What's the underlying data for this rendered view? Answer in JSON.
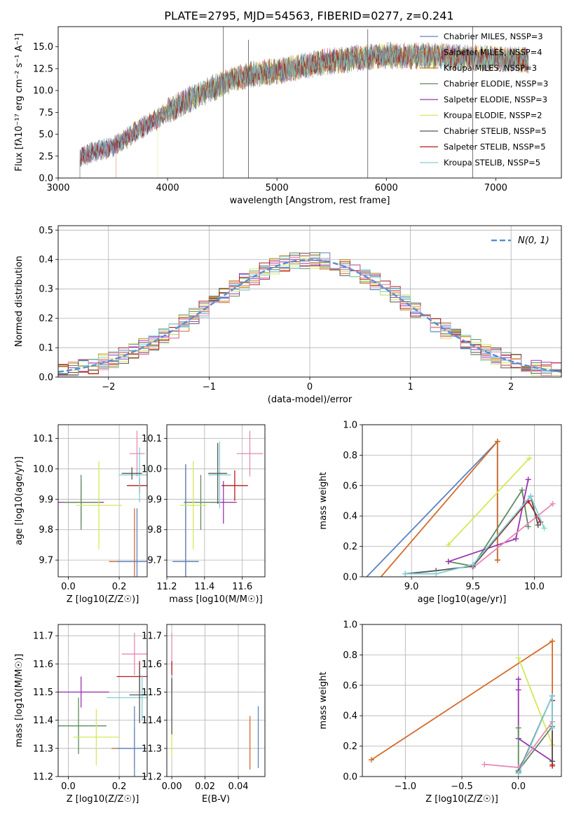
{
  "figure": {
    "title": "PLATE=2795, MJD=54563, FIBERID=0277, z=0.241"
  },
  "chart_data": [
    {
      "id": "spectrum",
      "type": "line",
      "xlabel": "wavelength [Angstrom, rest frame]",
      "ylabel": "Flux [fλ10⁻¹⁷ erg cm⁻² s⁻¹ A⁻¹]",
      "xlim": [
        3000,
        7600
      ],
      "ylim": [
        0,
        17.3
      ],
      "xticks": [
        3000,
        4000,
        5000,
        6000,
        7000
      ],
      "yticks": [
        0.0,
        2.5,
        5.0,
        7.5,
        10.0,
        12.5,
        15.0
      ],
      "grid": false,
      "legend_position": "upper-right",
      "legend": [
        {
          "label": "Chabrier MILES, NSSP=3",
          "color": "#5b84c4"
        },
        {
          "label": "Salpeter MILES, NSSP=4",
          "color": "#d46b29"
        },
        {
          "label": "Kroupa MILES, NSSP=3",
          "color": "#b8860b"
        },
        {
          "label": "Chabrier ELODIE, NSSP=3",
          "color": "#5f8a5f"
        },
        {
          "label": "Salpeter ELODIE, NSSP=3",
          "color": "#9a35b0"
        },
        {
          "label": "Kroupa ELODIE, NSSP=2",
          "color": "#d4e85a"
        },
        {
          "label": "Chabrier STELIB, NSSP=5",
          "color": "#555555"
        },
        {
          "label": "Salpeter STELIB, NSSP=5",
          "color": "#b81c1c"
        },
        {
          "label": "Kroupa STELIB, NSSP=5",
          "color": "#7fd0d6"
        }
      ],
      "continuum": {
        "x": [
          3200,
          3300,
          3500,
          3600,
          3700,
          3800,
          3900,
          4000,
          4200,
          4400,
          4600,
          4800,
          5000,
          5200,
          5400,
          5600,
          5800,
          6000,
          6200,
          6400,
          6600,
          6800,
          7000,
          7200,
          7300
        ],
        "y": [
          2.4,
          2.9,
          3.6,
          4.3,
          5.2,
          6.0,
          6.7,
          7.6,
          9.0,
          10.2,
          11.3,
          11.9,
          12.2,
          12.7,
          13.2,
          13.5,
          13.8,
          14.0,
          13.9,
          14.0,
          13.8,
          13.7,
          13.7,
          13.5,
          13.4
        ]
      },
      "spikes": [
        {
          "x": 4510,
          "y": 17.3
        },
        {
          "x": 4740,
          "y": 15.8
        },
        {
          "x": 5830,
          "y": 17.0
        },
        {
          "x": 6790,
          "y": 17.3
        }
      ]
    },
    {
      "id": "residual-distribution",
      "type": "line",
      "xlabel": "(data-model)/error",
      "ylabel": "Normed distribution",
      "xlim": [
        -2.5,
        2.5
      ],
      "ylim": [
        0,
        0.515
      ],
      "xticks": [
        -2,
        -1,
        0,
        1,
        2
      ],
      "yticks": [
        0.0,
        0.1,
        0.2,
        0.3,
        0.4,
        0.5
      ],
      "grid": true,
      "legend_position": "upper-right",
      "legend": [
        {
          "label": "N(0, 1)",
          "color": "#5b8fd0"
        }
      ],
      "bin_width": 0.1,
      "normal": {
        "mean": 0,
        "sigma": 1
      }
    },
    {
      "id": "age-vs-Z",
      "type": "scatter",
      "xlabel": "Z [log10(Z/Z☉)]",
      "ylabel": "age  [log10(age/yr)]",
      "xlim": [
        -0.04,
        0.31
      ],
      "ylim": [
        9.645,
        10.145
      ],
      "xticks": [
        0.0,
        0.2
      ],
      "yticks": [
        9.7,
        9.8,
        9.9,
        10.0,
        10.1
      ],
      "grid": true,
      "points": [
        {
          "x": 0.27,
          "y": 10.05,
          "xerr": 0.03,
          "yerr": 0.075,
          "color": "#e58ab5"
        },
        {
          "x": 0.05,
          "y": 9.89,
          "xerr": 0.09,
          "yerr": 0.07,
          "color": "#9a35b0"
        },
        {
          "x": 0.05,
          "y": 9.89,
          "xerr": 0.07,
          "yerr": 0.09,
          "color": "#5f8a5f"
        },
        {
          "x": 0.28,
          "y": 9.945,
          "xerr": 0.05,
          "yerr": 0.025,
          "color": "#b81c1c"
        },
        {
          "x": 0.26,
          "y": 9.695,
          "xerr": 0.1,
          "yerr": 0.175,
          "color": "#d46b29"
        },
        {
          "x": 0.27,
          "y": 9.695,
          "xerr": 0.08,
          "yerr": 0.175,
          "color": "#5b84c4"
        },
        {
          "x": 0.28,
          "y": 9.98,
          "xerr": 0.08,
          "yerr": 0.09,
          "color": "#7fd0d6"
        },
        {
          "x": 0.12,
          "y": 9.88,
          "xerr": 0.09,
          "yerr": 0.145,
          "color": "#d4e85a"
        },
        {
          "x": 0.25,
          "y": 9.985,
          "xerr": 0.04,
          "yerr": 0.02,
          "color": "#555555"
        }
      ]
    },
    {
      "id": "age-vs-mass",
      "type": "scatter",
      "xlabel": "mass [log10(M/M☉)]",
      "ylabel": "",
      "xlim": [
        11.2,
        11.72
      ],
      "ylim": [
        9.645,
        10.145
      ],
      "xticks": [
        11.2,
        11.4,
        11.6
      ],
      "yticks": [
        9.7,
        9.8,
        9.9,
        10.0,
        10.1
      ],
      "grid": true,
      "points": [
        {
          "x": 11.64,
          "y": 10.05,
          "xerr": 0.07,
          "yerr": 0.075,
          "color": "#e58ab5"
        },
        {
          "x": 11.5,
          "y": 9.89,
          "xerr": 0.07,
          "yerr": 0.07,
          "color": "#9a35b0"
        },
        {
          "x": 11.38,
          "y": 9.89,
          "xerr": 0.09,
          "yerr": 0.09,
          "color": "#5f8a5f"
        },
        {
          "x": 11.56,
          "y": 9.945,
          "xerr": 0.07,
          "yerr": 0.05,
          "color": "#b81c1c"
        },
        {
          "x": 11.3,
          "y": 9.695,
          "xerr": 0.06,
          "yerr": 0.32,
          "color": "#d46b29"
        },
        {
          "x": 11.3,
          "y": 9.695,
          "xerr": 0.07,
          "yerr": 0.32,
          "color": "#5b84c4"
        },
        {
          "x": 11.48,
          "y": 9.98,
          "xerr": 0.06,
          "yerr": 0.11,
          "color": "#7fd0d6"
        },
        {
          "x": 11.34,
          "y": 9.88,
          "xerr": 0.07,
          "yerr": 0.145,
          "color": "#d4e85a"
        },
        {
          "x": 11.47,
          "y": 9.985,
          "xerr": 0.05,
          "yerr": 0.1,
          "color": "#555555"
        }
      ]
    },
    {
      "id": "weight-vs-age",
      "type": "line",
      "xlabel": "age  [log10(age/yr)]",
      "ylabel": "mass weight",
      "xlim": [
        8.6,
        10.22
      ],
      "ylim": [
        0.0,
        1.0
      ],
      "xticks": [
        9.0,
        9.5,
        10.0
      ],
      "yticks": [
        0.0,
        0.2,
        0.4,
        0.6,
        0.8,
        1.0
      ],
      "grid": true,
      "series": [
        {
          "color": "#5b84c4",
          "x": [
            8.6,
            9.7,
            9.7
          ],
          "y": [
            -0.03,
            0.89,
            0.11
          ]
        },
        {
          "color": "#d46b29",
          "x": [
            8.72,
            9.7,
            9.7
          ],
          "y": [
            -0.03,
            0.89,
            0.11
          ]
        },
        {
          "color": "#d4e85a",
          "x": [
            9.3,
            9.96
          ],
          "y": [
            0.21,
            0.78
          ]
        },
        {
          "color": "#5f8a5f",
          "x": [
            9.3,
            9.5,
            9.9,
            9.95
          ],
          "y": [
            0.1,
            0.07,
            0.57,
            0.33
          ]
        },
        {
          "color": "#9a35b0",
          "x": [
            9.3,
            9.85,
            9.95
          ],
          "y": [
            0.1,
            0.25,
            0.64
          ]
        },
        {
          "color": "#b81c1c",
          "x": [
            9.5,
            9.95,
            10.05
          ],
          "y": [
            0.07,
            0.5,
            0.36
          ]
        },
        {
          "color": "#e58ab5",
          "x": [
            9.5,
            10.15
          ],
          "y": [
            0.06,
            0.48
          ]
        },
        {
          "color": "#555555",
          "x": [
            8.95,
            9.2,
            9.5,
            9.97,
            10.03
          ],
          "y": [
            0.02,
            0.04,
            0.07,
            0.53,
            0.34
          ]
        },
        {
          "color": "#7fd0d6",
          "x": [
            8.95,
            9.2,
            9.5,
            9.97,
            10.08
          ],
          "y": [
            0.02,
            0.02,
            0.08,
            0.53,
            0.32
          ]
        }
      ]
    },
    {
      "id": "mass-vs-Z",
      "type": "scatter",
      "xlabel": "Z [log10(Z/Z☉)]",
      "ylabel": "mass [log10(M/M☉)]",
      "xlim": [
        -0.04,
        0.31
      ],
      "ylim": [
        11.2,
        11.74
      ],
      "xticks": [
        0.0,
        0.2
      ],
      "yticks": [
        11.2,
        11.3,
        11.4,
        11.5,
        11.6,
        11.7
      ],
      "grid": true,
      "points": [
        {
          "x": 0.26,
          "y": 11.635,
          "xerr": 0.05,
          "yerr": 0.075,
          "color": "#e58ab5"
        },
        {
          "x": 0.05,
          "y": 11.5,
          "xerr": 0.11,
          "yerr": 0.055,
          "color": "#9a35b0"
        },
        {
          "x": 0.04,
          "y": 11.38,
          "xerr": 0.11,
          "yerr": 0.1,
          "color": "#5f8a5f"
        },
        {
          "x": 0.28,
          "y": 11.555,
          "xerr": 0.09,
          "yerr": 0.055,
          "color": "#b81c1c"
        },
        {
          "x": 0.26,
          "y": 11.3,
          "xerr": 0.09,
          "yerr": 0.07,
          "color": "#d46b29"
        },
        {
          "x": 0.26,
          "y": 11.3,
          "xerr": 0.07,
          "yerr": 0.15,
          "color": "#5b84c4"
        },
        {
          "x": 0.29,
          "y": 11.48,
          "xerr": 0.14,
          "yerr": 0.08,
          "color": "#7fd0d6"
        },
        {
          "x": 0.11,
          "y": 11.34,
          "xerr": 0.09,
          "yerr": 0.1,
          "color": "#d4e85a"
        },
        {
          "x": 0.28,
          "y": 11.49,
          "xerr": 0.04,
          "yerr": 0.1,
          "color": "#555555"
        }
      ]
    },
    {
      "id": "mass-vs-EBV",
      "type": "scatter",
      "xlabel": "E(B-V)",
      "ylabel": "",
      "xlim": [
        -0.003,
        0.056
      ],
      "ylim": [
        11.2,
        11.74
      ],
      "xticks": [
        0.0,
        0.02,
        0.04
      ],
      "xticklabels": [
        "0.00",
        "0.02",
        "0.04"
      ],
      "yticks": [
        11.2,
        11.3,
        11.4,
        11.5,
        11.6,
        11.7
      ],
      "grid": true,
      "points": [
        {
          "x": 0.0,
          "y": 11.635,
          "xerr": 0,
          "yerr": 0.075,
          "color": "#e58ab5"
        },
        {
          "x": 0.0,
          "y": 11.555,
          "xerr": 0,
          "yerr": 0.055,
          "color": "#b81c1c"
        },
        {
          "x": 0.0,
          "y": 11.48,
          "xerr": 0,
          "yerr": 0.08,
          "color": "#7fd0d6"
        },
        {
          "x": 0.0,
          "y": 11.34,
          "xerr": 0,
          "yerr": 0.07,
          "color": "#d4e85a"
        },
        {
          "x": 0.0,
          "y": 11.45,
          "xerr": 0,
          "yerr": 0.1,
          "color": "#555555"
        },
        {
          "x": 0.047,
          "y": 11.32,
          "xerr": 0,
          "yerr": 0.095,
          "color": "#d46b29"
        },
        {
          "x": 0.052,
          "y": 11.34,
          "xerr": 0,
          "yerr": 0.11,
          "color": "#5b84c4"
        }
      ]
    },
    {
      "id": "weight-vs-Z",
      "type": "line",
      "xlabel": "Z [log10(Z/Z☉)]",
      "ylabel": "mass weight",
      "xlim": [
        -1.38,
        0.38
      ],
      "ylim": [
        0.0,
        1.0
      ],
      "xticks": [
        -1.0,
        -0.5,
        0.0
      ],
      "yticks": [
        0.0,
        0.2,
        0.4,
        0.6,
        0.8,
        1.0
      ],
      "grid": true,
      "series": [
        {
          "color": "#d46b29",
          "x": [
            -1.3,
            0.3,
            0.3
          ],
          "y": [
            0.11,
            0.89,
            0.08
          ]
        },
        {
          "color": "#d4e85a",
          "x": [
            0.0,
            0.3
          ],
          "y": [
            0.78,
            0.21
          ]
        },
        {
          "color": "#9a35b0",
          "x": [
            0.0,
            0.0,
            0.0,
            0.3
          ],
          "y": [
            0.64,
            0.57,
            0.25,
            0.1
          ]
        },
        {
          "color": "#5f8a5f",
          "x": [
            0.0,
            0.0,
            0.3
          ],
          "y": [
            0.32,
            0.04,
            0.33
          ]
        },
        {
          "color": "#e58ab5",
          "x": [
            -0.3,
            0.0,
            0.3
          ],
          "y": [
            0.08,
            0.06,
            0.36
          ]
        },
        {
          "color": "#b81c1c",
          "x": [
            0.3,
            0.3
          ],
          "y": [
            0.5,
            0.07
          ]
        },
        {
          "color": "#555555",
          "x": [
            0.0,
            0.3,
            0.3
          ],
          "y": [
            0.03,
            0.53,
            0.1
          ]
        },
        {
          "color": "#7fd0d6",
          "x": [
            0.0,
            0.3,
            0.3
          ],
          "y": [
            0.02,
            0.53,
            0.32
          ]
        }
      ]
    }
  ]
}
